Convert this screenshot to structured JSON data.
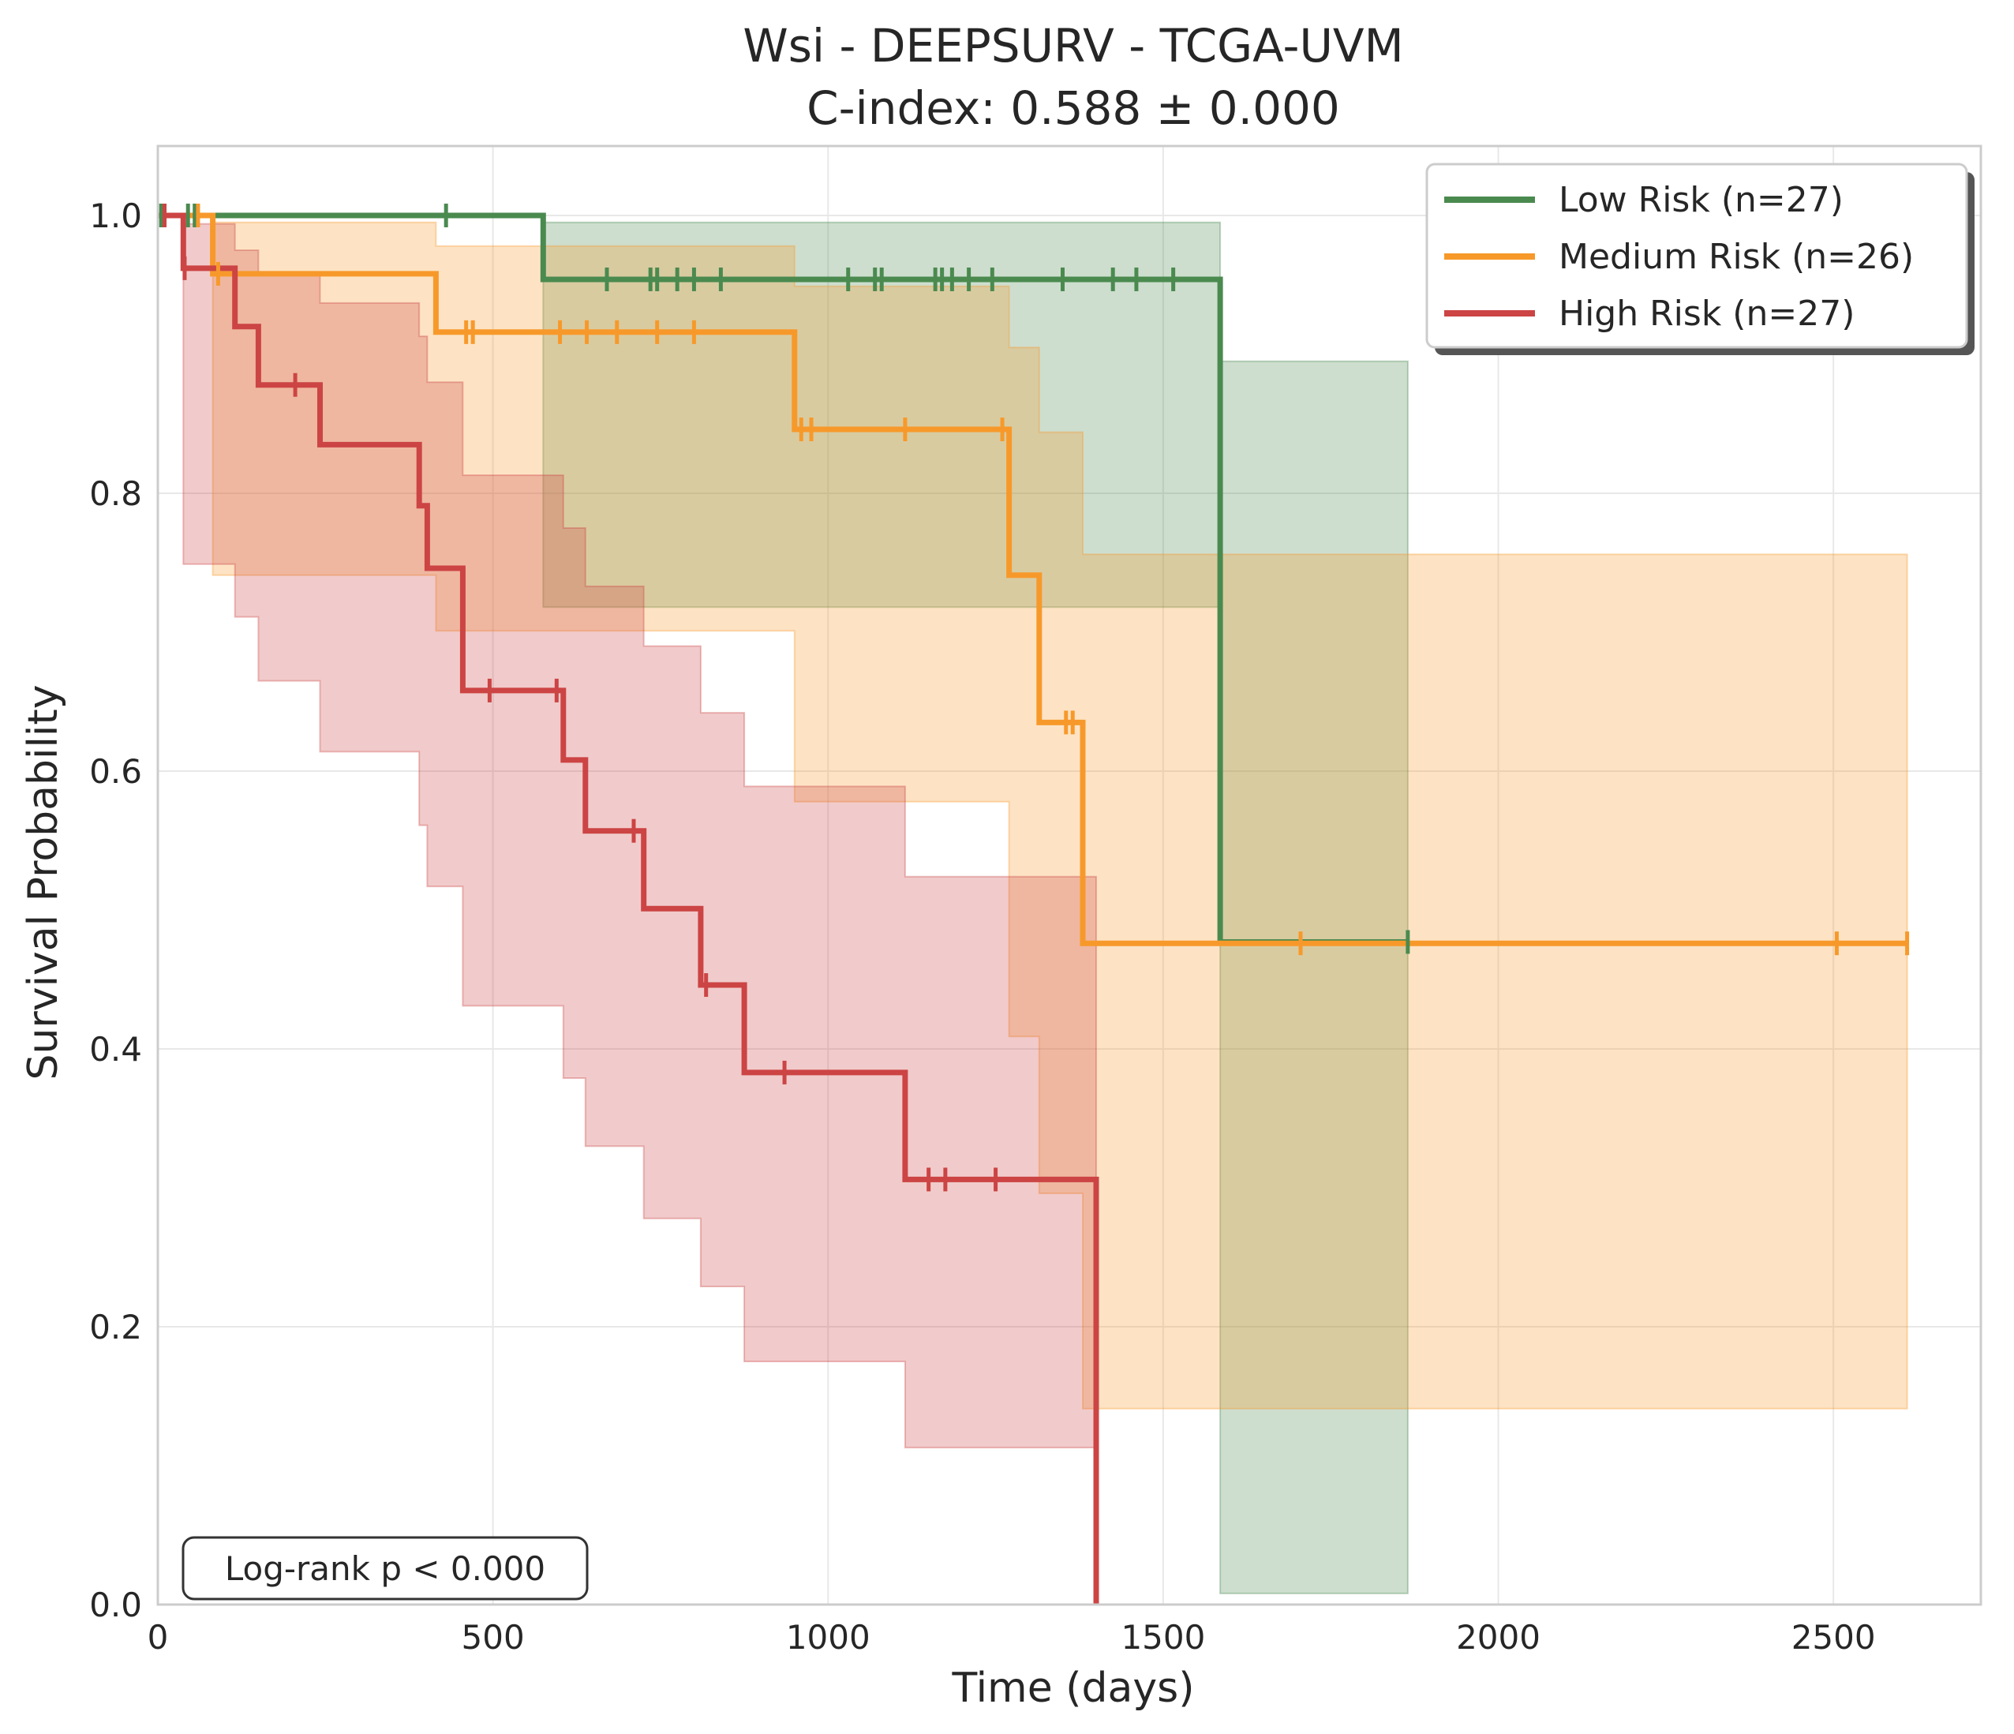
{
  "chart_data": {
    "type": "line",
    "subtype": "kaplan-meier",
    "title": "Wsi - DEEPSURV - TCGA-UVM",
    "subtitle": "C-index: 0.588 ± 0.000",
    "xlabel": "Time (days)",
    "ylabel": "Survival Probability",
    "xlim": [
      0,
      2720
    ],
    "ylim": [
      0,
      1.05
    ],
    "xticks": [
      0,
      500,
      1000,
      1500,
      2000,
      2500
    ],
    "yticks": [
      0.0,
      0.2,
      0.4,
      0.6,
      0.8,
      1.0
    ],
    "xtick_labels": [
      "0",
      "500",
      "1000",
      "1500",
      "2000",
      "2500"
    ],
    "ytick_labels": [
      "0.0",
      "0.2",
      "0.4",
      "0.6",
      "0.8",
      "1.0"
    ],
    "grid": true,
    "legend_position": "top-right",
    "annotation": "Log-rank p < 0.000",
    "series": [
      {
        "name": "Low Risk (n=27)",
        "color": "#4a8a4f",
        "steps": [
          [
            0,
            1.0
          ],
          [
            575,
            0.954
          ],
          [
            1585,
            0.477
          ],
          [
            1865,
            0.477
          ]
        ],
        "ci": [
          [
            0,
            1.0,
            1.0
          ],
          [
            575,
            0.718,
            0.995
          ],
          [
            1585,
            0.008,
            0.895
          ],
          [
            1865,
            0.008,
            0.895
          ]
        ],
        "censors": [
          [
            5,
            1.0
          ],
          [
            45,
            1.0
          ],
          [
            55,
            1.0
          ],
          [
            430,
            1.0
          ],
          [
            670,
            0.954
          ],
          [
            735,
            0.954
          ],
          [
            745,
            0.954
          ],
          [
            775,
            0.954
          ],
          [
            800,
            0.954
          ],
          [
            840,
            0.954
          ],
          [
            1030,
            0.954
          ],
          [
            1070,
            0.954
          ],
          [
            1080,
            0.954
          ],
          [
            1160,
            0.954
          ],
          [
            1170,
            0.954
          ],
          [
            1185,
            0.954
          ],
          [
            1210,
            0.954
          ],
          [
            1245,
            0.954
          ],
          [
            1350,
            0.954
          ],
          [
            1425,
            0.954
          ],
          [
            1460,
            0.954
          ],
          [
            1515,
            0.954
          ],
          [
            1865,
            0.477
          ]
        ]
      },
      {
        "name": "Medium Risk (n=26)",
        "color": "#f7992a",
        "steps": [
          [
            0,
            1.0
          ],
          [
            82,
            0.958
          ],
          [
            415,
            0.916
          ],
          [
            950,
            0.846
          ],
          [
            1270,
            0.741
          ],
          [
            1315,
            0.635
          ],
          [
            1380,
            0.476
          ],
          [
            2610,
            0.476
          ]
        ],
        "ci": [
          [
            0,
            1.0,
            1.0
          ],
          [
            82,
            0.741,
            0.995
          ],
          [
            415,
            0.701,
            0.978
          ],
          [
            950,
            0.578,
            0.949
          ],
          [
            1270,
            0.409,
            0.905
          ],
          [
            1315,
            0.296,
            0.844
          ],
          [
            1380,
            0.141,
            0.756
          ],
          [
            2610,
            0.141,
            0.756
          ]
        ],
        "censors": [
          [
            10,
            1.0
          ],
          [
            60,
            1.0
          ],
          [
            90,
            0.958
          ],
          [
            460,
            0.916
          ],
          [
            470,
            0.916
          ],
          [
            600,
            0.916
          ],
          [
            640,
            0.916
          ],
          [
            685,
            0.916
          ],
          [
            745,
            0.916
          ],
          [
            800,
            0.916
          ],
          [
            960,
            0.846
          ],
          [
            975,
            0.846
          ],
          [
            1115,
            0.846
          ],
          [
            1260,
            0.846
          ],
          [
            1355,
            0.635
          ],
          [
            1365,
            0.635
          ],
          [
            1705,
            0.476
          ],
          [
            2505,
            0.476
          ],
          [
            2610,
            0.476
          ]
        ]
      },
      {
        "name": "High Risk (n=27)",
        "color": "#cc4444",
        "steps": [
          [
            0,
            1.0
          ],
          [
            38,
            0.962
          ],
          [
            115,
            0.92
          ],
          [
            150,
            0.878
          ],
          [
            242,
            0.835
          ],
          [
            390,
            0.791
          ],
          [
            402,
            0.746
          ],
          [
            455,
            0.658
          ],
          [
            605,
            0.608
          ],
          [
            638,
            0.557
          ],
          [
            725,
            0.501
          ],
          [
            810,
            0.446
          ],
          [
            875,
            0.383
          ],
          [
            1115,
            0.306
          ],
          [
            1400,
            0.0
          ]
        ],
        "ci": [
          [
            0,
            1.0,
            1.0
          ],
          [
            38,
            0.749,
            0.994
          ],
          [
            115,
            0.711,
            0.975
          ],
          [
            150,
            0.665,
            0.959
          ],
          [
            242,
            0.614,
            0.937
          ],
          [
            390,
            0.561,
            0.913
          ],
          [
            402,
            0.517,
            0.88
          ],
          [
            455,
            0.431,
            0.813
          ],
          [
            605,
            0.379,
            0.775
          ],
          [
            638,
            0.33,
            0.733
          ],
          [
            725,
            0.278,
            0.69
          ],
          [
            810,
            0.229,
            0.642
          ],
          [
            875,
            0.175,
            0.589
          ],
          [
            1115,
            0.113,
            0.524
          ],
          [
            1400,
            0.113,
            0.524
          ]
        ],
        "censors": [
          [
            10,
            1.0
          ],
          [
            40,
            0.962
          ],
          [
            205,
            0.878
          ],
          [
            495,
            0.658
          ],
          [
            595,
            0.658
          ],
          [
            710,
            0.557
          ],
          [
            818,
            0.446
          ],
          [
            935,
            0.383
          ],
          [
            1150,
            0.306
          ],
          [
            1175,
            0.306
          ],
          [
            1250,
            0.306
          ]
        ]
      }
    ]
  }
}
